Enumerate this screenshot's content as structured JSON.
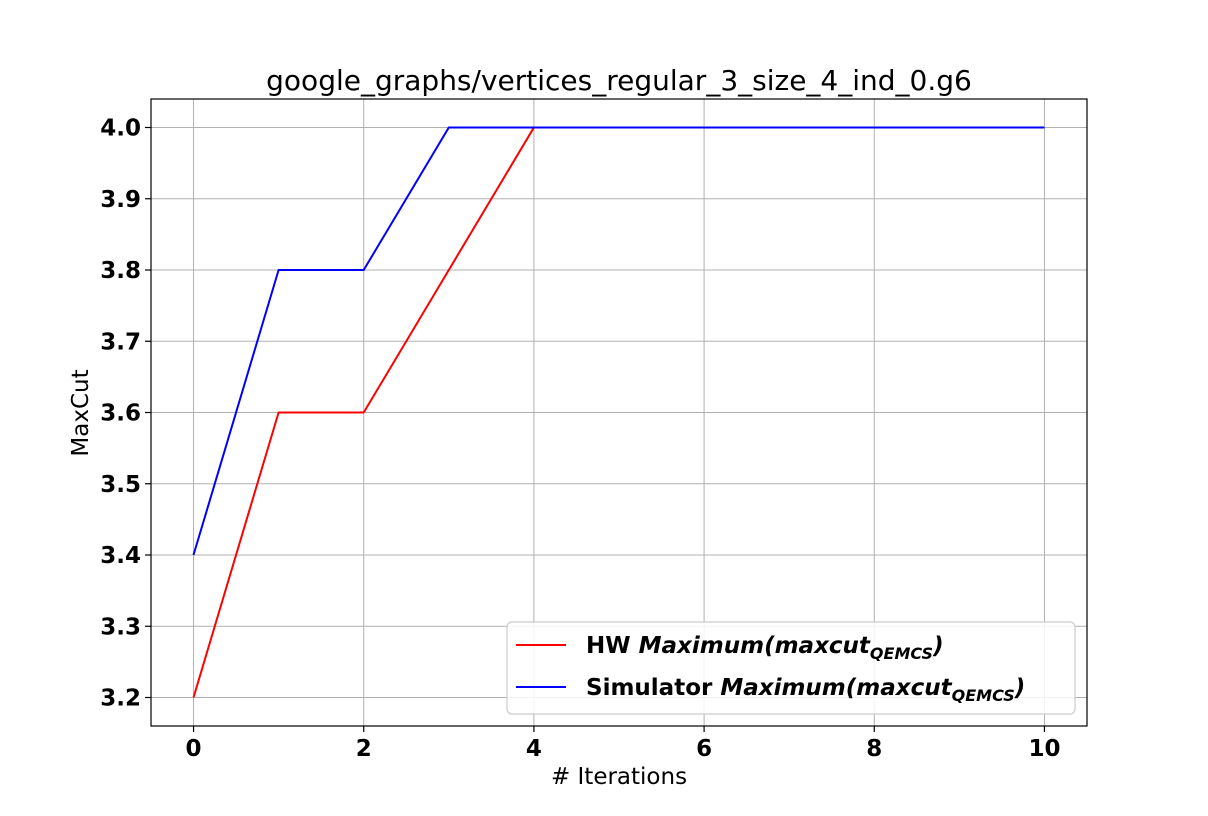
{
  "chart_data": {
    "type": "line",
    "title": "google_graphs/vertices_regular_3_size_4_ind_0.g6",
    "xlabel": "# Iterations",
    "ylabel": "MaxCut",
    "x": [
      0,
      1,
      2,
      3,
      4,
      5,
      6,
      7,
      8,
      9,
      10
    ],
    "xlim": [
      -0.5,
      10.5
    ],
    "ylim": [
      3.16,
      4.04
    ],
    "xticks": [
      0,
      2,
      4,
      6,
      8,
      10
    ],
    "yticks": [
      3.2,
      3.3,
      3.4,
      3.5,
      3.6,
      3.7,
      3.8,
      3.9,
      4.0
    ],
    "xtick_labels": [
      "0",
      "2",
      "4",
      "6",
      "8",
      "10"
    ],
    "ytick_labels": [
      "3.2",
      "3.3",
      "3.4",
      "3.5",
      "3.6",
      "3.7",
      "3.8",
      "3.9",
      "4.0"
    ],
    "grid": true,
    "legend_position": "lower-right",
    "series": [
      {
        "name": "HW Maximum(maxcut_QEMCS)",
        "legend_prefix": "HW ",
        "legend_func": "Maximum(maxcut",
        "legend_sub": "QEMCS",
        "legend_close": ")",
        "color": "#ff0000",
        "values": [
          3.2,
          3.6,
          3.6,
          3.8,
          4.0,
          4.0,
          4.0,
          4.0,
          4.0,
          4.0,
          4.0
        ]
      },
      {
        "name": "Simulator Maximum(maxcut_QEMCS)",
        "legend_prefix": "Simulator ",
        "legend_func": "Maximum(maxcut",
        "legend_sub": "QEMCS",
        "legend_close": ")",
        "color": "#0000ff",
        "values": [
          3.4,
          3.8,
          3.8,
          4.0,
          4.0,
          4.0,
          4.0,
          4.0,
          4.0,
          4.0,
          4.0
        ]
      }
    ]
  }
}
